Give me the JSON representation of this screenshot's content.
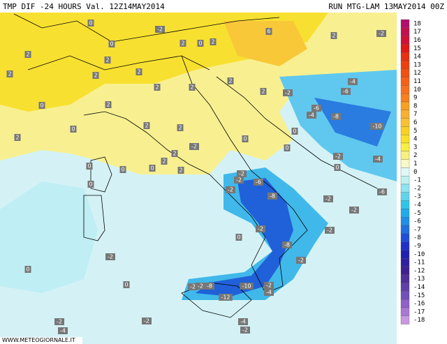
{
  "header": {
    "title": "TMP DIF -24 HOURS Val. 12Z14MAY2014",
    "run": "RUN MTG-LAM 13MAY2014 00Z"
  },
  "legend": {
    "levels": [
      18,
      17,
      16,
      15,
      14,
      13,
      12,
      11,
      10,
      9,
      8,
      7,
      6,
      5,
      4,
      3,
      2,
      1,
      0,
      -1,
      -2,
      -3,
      -4,
      -5,
      -6,
      -7,
      -8,
      -9,
      -10,
      -11,
      -12,
      -13,
      -14,
      -15,
      -16,
      -17,
      -18
    ],
    "colors": [
      "#b0106a",
      "#c01050",
      "#d01038",
      "#e01818",
      "#e83010",
      "#f04010",
      "#f05010",
      "#f86018",
      "#f87020",
      "#f88020",
      "#f8a020",
      "#f8b030",
      "#f8c030",
      "#f8d020",
      "#f8e028",
      "#f8f040",
      "#f8f080",
      "#f8f8c8",
      "#e0f8f8",
      "#c0f0f0",
      "#90e4f0",
      "#60d4ec",
      "#30c4e8",
      "#20acea",
      "#2090e8",
      "#2070e0",
      "#2050d8",
      "#2030c8",
      "#2020b0",
      "#3020a0",
      "#402090",
      "#503098",
      "#6040a8",
      "#7050b8",
      "#9060c8",
      "#a878d4",
      "#c898e0"
    ]
  },
  "map": {
    "labels": [
      0,
      -2,
      0,
      2,
      0,
      2,
      6,
      2,
      -2,
      2,
      2,
      2,
      2,
      2,
      2,
      2,
      2,
      2,
      -2,
      -6,
      -4,
      0,
      2,
      2,
      2,
      -6,
      -4,
      -8,
      -10,
      0,
      0,
      2,
      0,
      -2,
      0,
      2,
      -2,
      -4,
      0,
      0,
      0,
      2,
      2,
      0,
      -2,
      -2,
      -6,
      0,
      -2,
      -8,
      -6,
      -2,
      -2,
      -2,
      -2,
      0,
      -8,
      -2,
      -2,
      0,
      0,
      -2,
      -2,
      -8,
      -10,
      -2,
      -12,
      -4,
      -2,
      -2,
      -4,
      -2,
      -4
    ]
  },
  "footer": {
    "source": "WWW.METEOGIORNALE.IT"
  }
}
